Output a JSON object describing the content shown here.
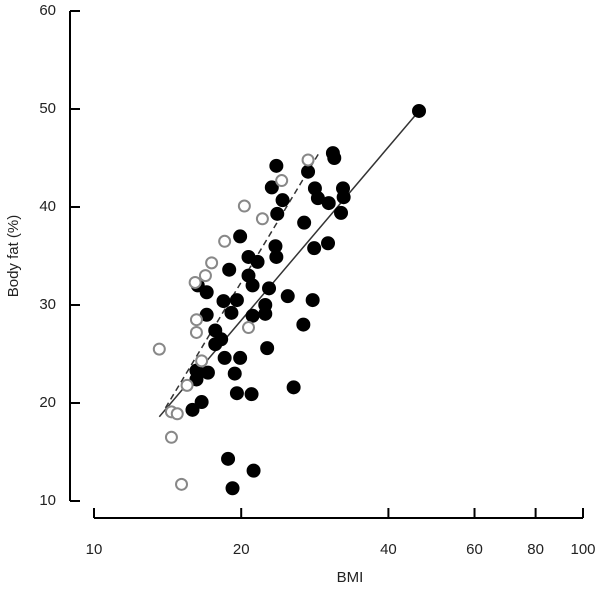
{
  "chart_data": {
    "type": "scatter",
    "x_label": "BMI",
    "y_label": "Body fat (%)",
    "xscale": "log",
    "xlim": [
      10,
      100
    ],
    "ylim": [
      10,
      60
    ],
    "xticks": [
      10,
      20,
      40,
      60,
      80,
      100
    ],
    "yticks": [
      10,
      20,
      30,
      40,
      50,
      60
    ],
    "series": [
      {
        "color": "#000000",
        "marker": "filled",
        "x": [
          46.2,
          23.6,
          30.8,
          31.0,
          27.4,
          23.1,
          24.3,
          28.3,
          28.7,
          32.3,
          32.4,
          30.2,
          32.0,
          23.7,
          19.9,
          26.9,
          23.5,
          28.2,
          30.1,
          23.6,
          20.7,
          21.6,
          18.9,
          20.7,
          21.1,
          16.3,
          17.0,
          24.9,
          28.0,
          18.4,
          19.6,
          19.1,
          17.0,
          22.4,
          22.4,
          21.1,
          22.8,
          17.7,
          18.2,
          17.7,
          26.8,
          22.6,
          16.2,
          17.1,
          16.2,
          18.5,
          19.9,
          19.4,
          25.6,
          19.6,
          21.0,
          16.6,
          15.9,
          18.8,
          21.2,
          19.2
        ],
        "values": [
          49.8,
          44.2,
          45.5,
          45.0,
          43.6,
          42.0,
          40.7,
          41.9,
          40.9,
          41.9,
          41.0,
          40.4,
          39.4,
          39.3,
          37.0,
          38.4,
          36.0,
          35.8,
          36.3,
          34.9,
          34.9,
          34.4,
          33.6,
          33.0,
          32.0,
          32.0,
          31.3,
          30.9,
          30.5,
          30.4,
          30.5,
          29.2,
          29.0,
          29.1,
          30.0,
          28.9,
          31.7,
          27.4,
          26.5,
          26.0,
          28.0,
          25.6,
          23.3,
          23.1,
          22.4,
          24.6,
          24.6,
          23.0,
          21.6,
          21.0,
          20.9,
          20.1,
          19.3,
          14.3,
          13.1,
          11.3
        ]
      },
      {
        "color": "#888888",
        "marker": "open",
        "x": [
          13.6,
          27.4,
          24.2,
          20.3,
          22.1,
          18.5,
          17.4,
          16.9,
          16.1,
          20.7,
          16.2,
          16.2,
          16.6,
          15.5,
          14.4,
          14.8,
          14.4,
          15.1
        ],
        "values": [
          25.5,
          44.8,
          42.7,
          40.1,
          38.8,
          36.5,
          34.3,
          33.0,
          32.3,
          27.7,
          28.5,
          27.2,
          24.3,
          21.8,
          19.1,
          18.9,
          16.5,
          11.7
        ]
      }
    ],
    "fit_lines": [
      {
        "color": "#333333",
        "dash": false,
        "x": [
          13.6,
          46.2
        ],
        "values": [
          18.6,
          49.8
        ]
      },
      {
        "color": "#333333",
        "dash": true,
        "x": [
          14.0,
          29.0
        ],
        "values": [
          19.5,
          45.7
        ]
      }
    ]
  }
}
